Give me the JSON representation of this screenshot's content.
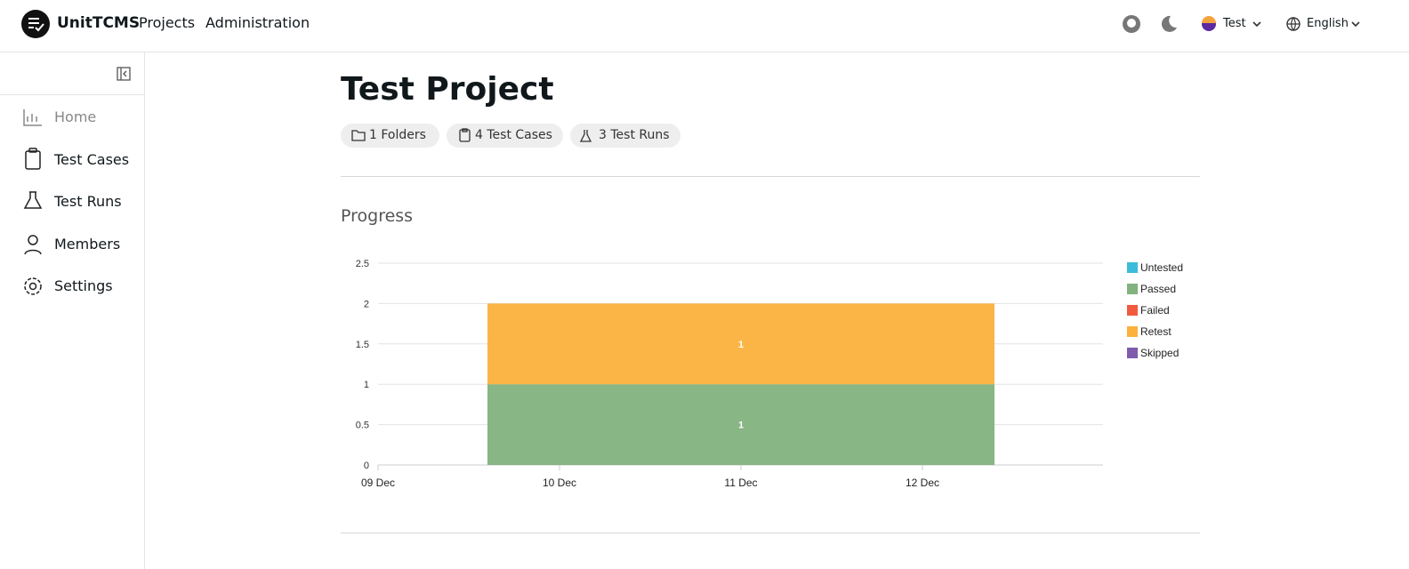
{
  "header": {
    "brand": "UnitTCMS",
    "nav": [
      "Projects",
      "Administration"
    ],
    "user": "Test",
    "language": "English"
  },
  "sidebar": {
    "items": [
      "Home",
      "Test Cases",
      "Test Runs",
      "Members",
      "Settings"
    ]
  },
  "project": {
    "title": "Test Project",
    "chips": [
      "1 Folders",
      "4 Test Cases",
      "3 Test Runs"
    ]
  },
  "section": {
    "title": "Progress"
  },
  "chart_data": {
    "type": "bar",
    "stacked": true,
    "categories": [
      "09 Dec",
      "10 Dec",
      "11 Dec",
      "12 Dec"
    ],
    "series": [
      {
        "name": "Untested",
        "color": "#3bbcd9",
        "values": [
          null,
          null,
          0,
          null
        ]
      },
      {
        "name": "Passed",
        "color": "#82b27e",
        "values": [
          null,
          null,
          1,
          null
        ]
      },
      {
        "name": "Failed",
        "color": "#f25a3f",
        "values": [
          null,
          null,
          0,
          null
        ]
      },
      {
        "name": "Retest",
        "color": "#fbb13c",
        "values": [
          null,
          null,
          1,
          null
        ]
      },
      {
        "name": "Skipped",
        "color": "#7f5bad",
        "values": [
          null,
          null,
          0,
          null
        ]
      }
    ],
    "ylim": [
      0,
      2.5
    ],
    "yticks": [
      0,
      0.5,
      1,
      1.5,
      2,
      2.5
    ],
    "grid": true,
    "legend": "right"
  }
}
